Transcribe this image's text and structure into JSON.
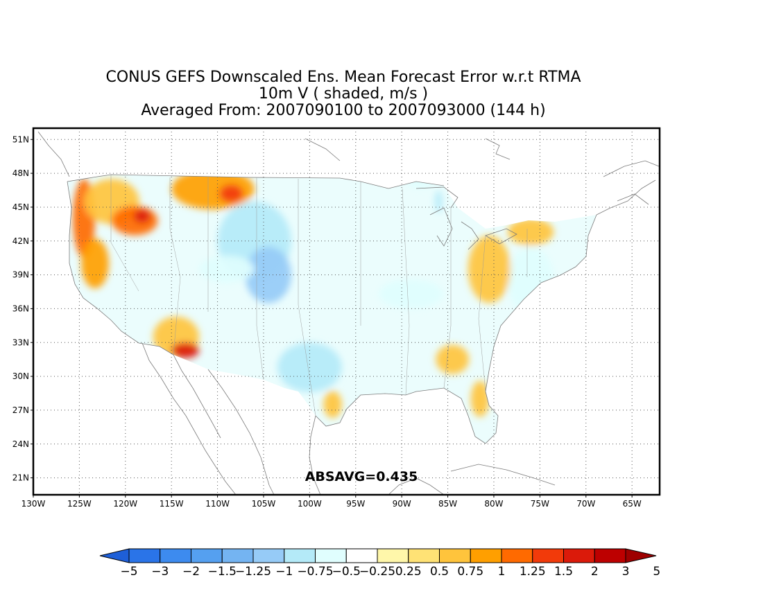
{
  "title": {
    "line1": "CONUS GEFS Downscaled Ens. Mean Forecast Error w.r.t RTMA",
    "line2": "10m V ( shaded, m/s )",
    "line3": "Averaged From: 2007090100 to 2007093000 (144 h)"
  },
  "map": {
    "projection": "lat-lon",
    "lon_range": [
      -130,
      -62
    ],
    "lat_range": [
      19.5,
      52
    ],
    "lat_ticks": [
      "21N",
      "24N",
      "27N",
      "30N",
      "33N",
      "36N",
      "39N",
      "42N",
      "45N",
      "48N",
      "51N"
    ],
    "lat_values": [
      21,
      24,
      27,
      30,
      33,
      36,
      39,
      42,
      45,
      48,
      51
    ],
    "lon_ticks": [
      "130W",
      "125W",
      "120W",
      "115W",
      "110W",
      "105W",
      "100W",
      "95W",
      "90W",
      "85W",
      "80W",
      "75W",
      "70W",
      "65W"
    ],
    "lon_values": [
      -130,
      -125,
      -120,
      -115,
      -110,
      -105,
      -100,
      -95,
      -90,
      -85,
      -80,
      -75,
      -70,
      -65
    ],
    "grid": "dotted",
    "annotation": "ABSAVG=0.435"
  },
  "colorbar": {
    "labels": [
      "-5",
      "-3",
      "-2",
      "-1.5",
      "-1.25",
      "-1",
      "-0.75",
      "-0.5",
      "-0.25",
      "0.25",
      "0.5",
      "0.75",
      "1",
      "1.25",
      "1.5",
      "2",
      "3",
      "5"
    ],
    "colors": [
      "#1e5fd8",
      "#2a74e8",
      "#3d8bef",
      "#55a0f0",
      "#74b4f2",
      "#96cbf7",
      "#b4eaf8",
      "#e0fefe",
      "#ffffff",
      "#fff7aa",
      "#ffe275",
      "#ffc43c",
      "#ff9f00",
      "#ff6a00",
      "#f23a0a",
      "#db1a0a",
      "#bd0000",
      "#9e0000"
    ]
  },
  "chart_data": {
    "type": "heatmap",
    "title": "CONUS GEFS Downscaled Ens. Mean Forecast Error w.r.t RTMA",
    "variable": "10m V ( shaded, m/s )",
    "period": "Averaged From: 2007090100 to 2007093000 (144 h)",
    "xlim": [
      -130,
      -62
    ],
    "ylim": [
      19.5,
      52
    ],
    "absavg": 0.435,
    "levels": [
      -5,
      -3,
      -2,
      -1.5,
      -1.25,
      -1,
      -0.75,
      -0.5,
      -0.25,
      0.25,
      0.5,
      0.75,
      1,
      1.25,
      1.5,
      2,
      3,
      5
    ],
    "regions": [
      {
        "lon": -124.5,
        "lat": 44,
        "rx": 1.2,
        "ry": 3.5,
        "value": 1.0
      },
      {
        "lon": -123.3,
        "lat": 40,
        "rx": 1.5,
        "ry": 2.2,
        "value": 0.9
      },
      {
        "lon": -121.5,
        "lat": 45.5,
        "rx": 3,
        "ry": 2,
        "value": 0.6
      },
      {
        "lon": -119,
        "lat": 43.8,
        "rx": 2.5,
        "ry": 1.3,
        "value": 1.0
      },
      {
        "lon": -118.2,
        "lat": 44.2,
        "rx": 0.9,
        "ry": 0.6,
        "value": 1.5
      },
      {
        "lon": -110.5,
        "lat": 46.6,
        "rx": 4.5,
        "ry": 1.8,
        "value": 0.9
      },
      {
        "lon": -108.5,
        "lat": 46.2,
        "rx": 1.3,
        "ry": 0.8,
        "value": 1.3
      },
      {
        "lon": -114.5,
        "lat": 33.5,
        "rx": 2.5,
        "ry": 1.8,
        "value": 0.7
      },
      {
        "lon": -113.5,
        "lat": 32.3,
        "rx": 1.5,
        "ry": 0.7,
        "value": 1.5
      },
      {
        "lon": -106,
        "lat": 42,
        "rx": 4,
        "ry": 3.5,
        "value": -1.0
      },
      {
        "lon": -104.5,
        "lat": 39,
        "rx": 2.5,
        "ry": 2.5,
        "value": -1.25
      },
      {
        "lon": -109,
        "lat": 39.5,
        "rx": 3,
        "ry": 1.2,
        "value": -0.75
      },
      {
        "lon": -100,
        "lat": 30.8,
        "rx": 3.5,
        "ry": 2.2,
        "value": -1.0
      },
      {
        "lon": -97.5,
        "lat": 27.5,
        "rx": 1,
        "ry": 1.2,
        "value": 0.6
      },
      {
        "lon": -89,
        "lat": 37.3,
        "rx": 3.5,
        "ry": 1.3,
        "value": -0.6
      },
      {
        "lon": -76,
        "lat": 38.5,
        "rx": 2.5,
        "ry": 3,
        "value": -0.6
      },
      {
        "lon": -80.5,
        "lat": 39.5,
        "rx": 2.3,
        "ry": 3,
        "value": 0.5
      },
      {
        "lon": -76,
        "lat": 42.8,
        "rx": 2.5,
        "ry": 1.2,
        "value": 0.6
      },
      {
        "lon": -84.5,
        "lat": 31.5,
        "rx": 1.8,
        "ry": 1.3,
        "value": 0.5
      },
      {
        "lon": -81.5,
        "lat": 28,
        "rx": 1,
        "ry": 1.6,
        "value": 0.5
      },
      {
        "lon": -86,
        "lat": 45.5,
        "rx": 0.4,
        "ry": 1,
        "value": -1.0
      },
      {
        "lon": -88,
        "lat": 47.2,
        "rx": 1.5,
        "ry": 0.5,
        "value": -0.75
      }
    ]
  }
}
